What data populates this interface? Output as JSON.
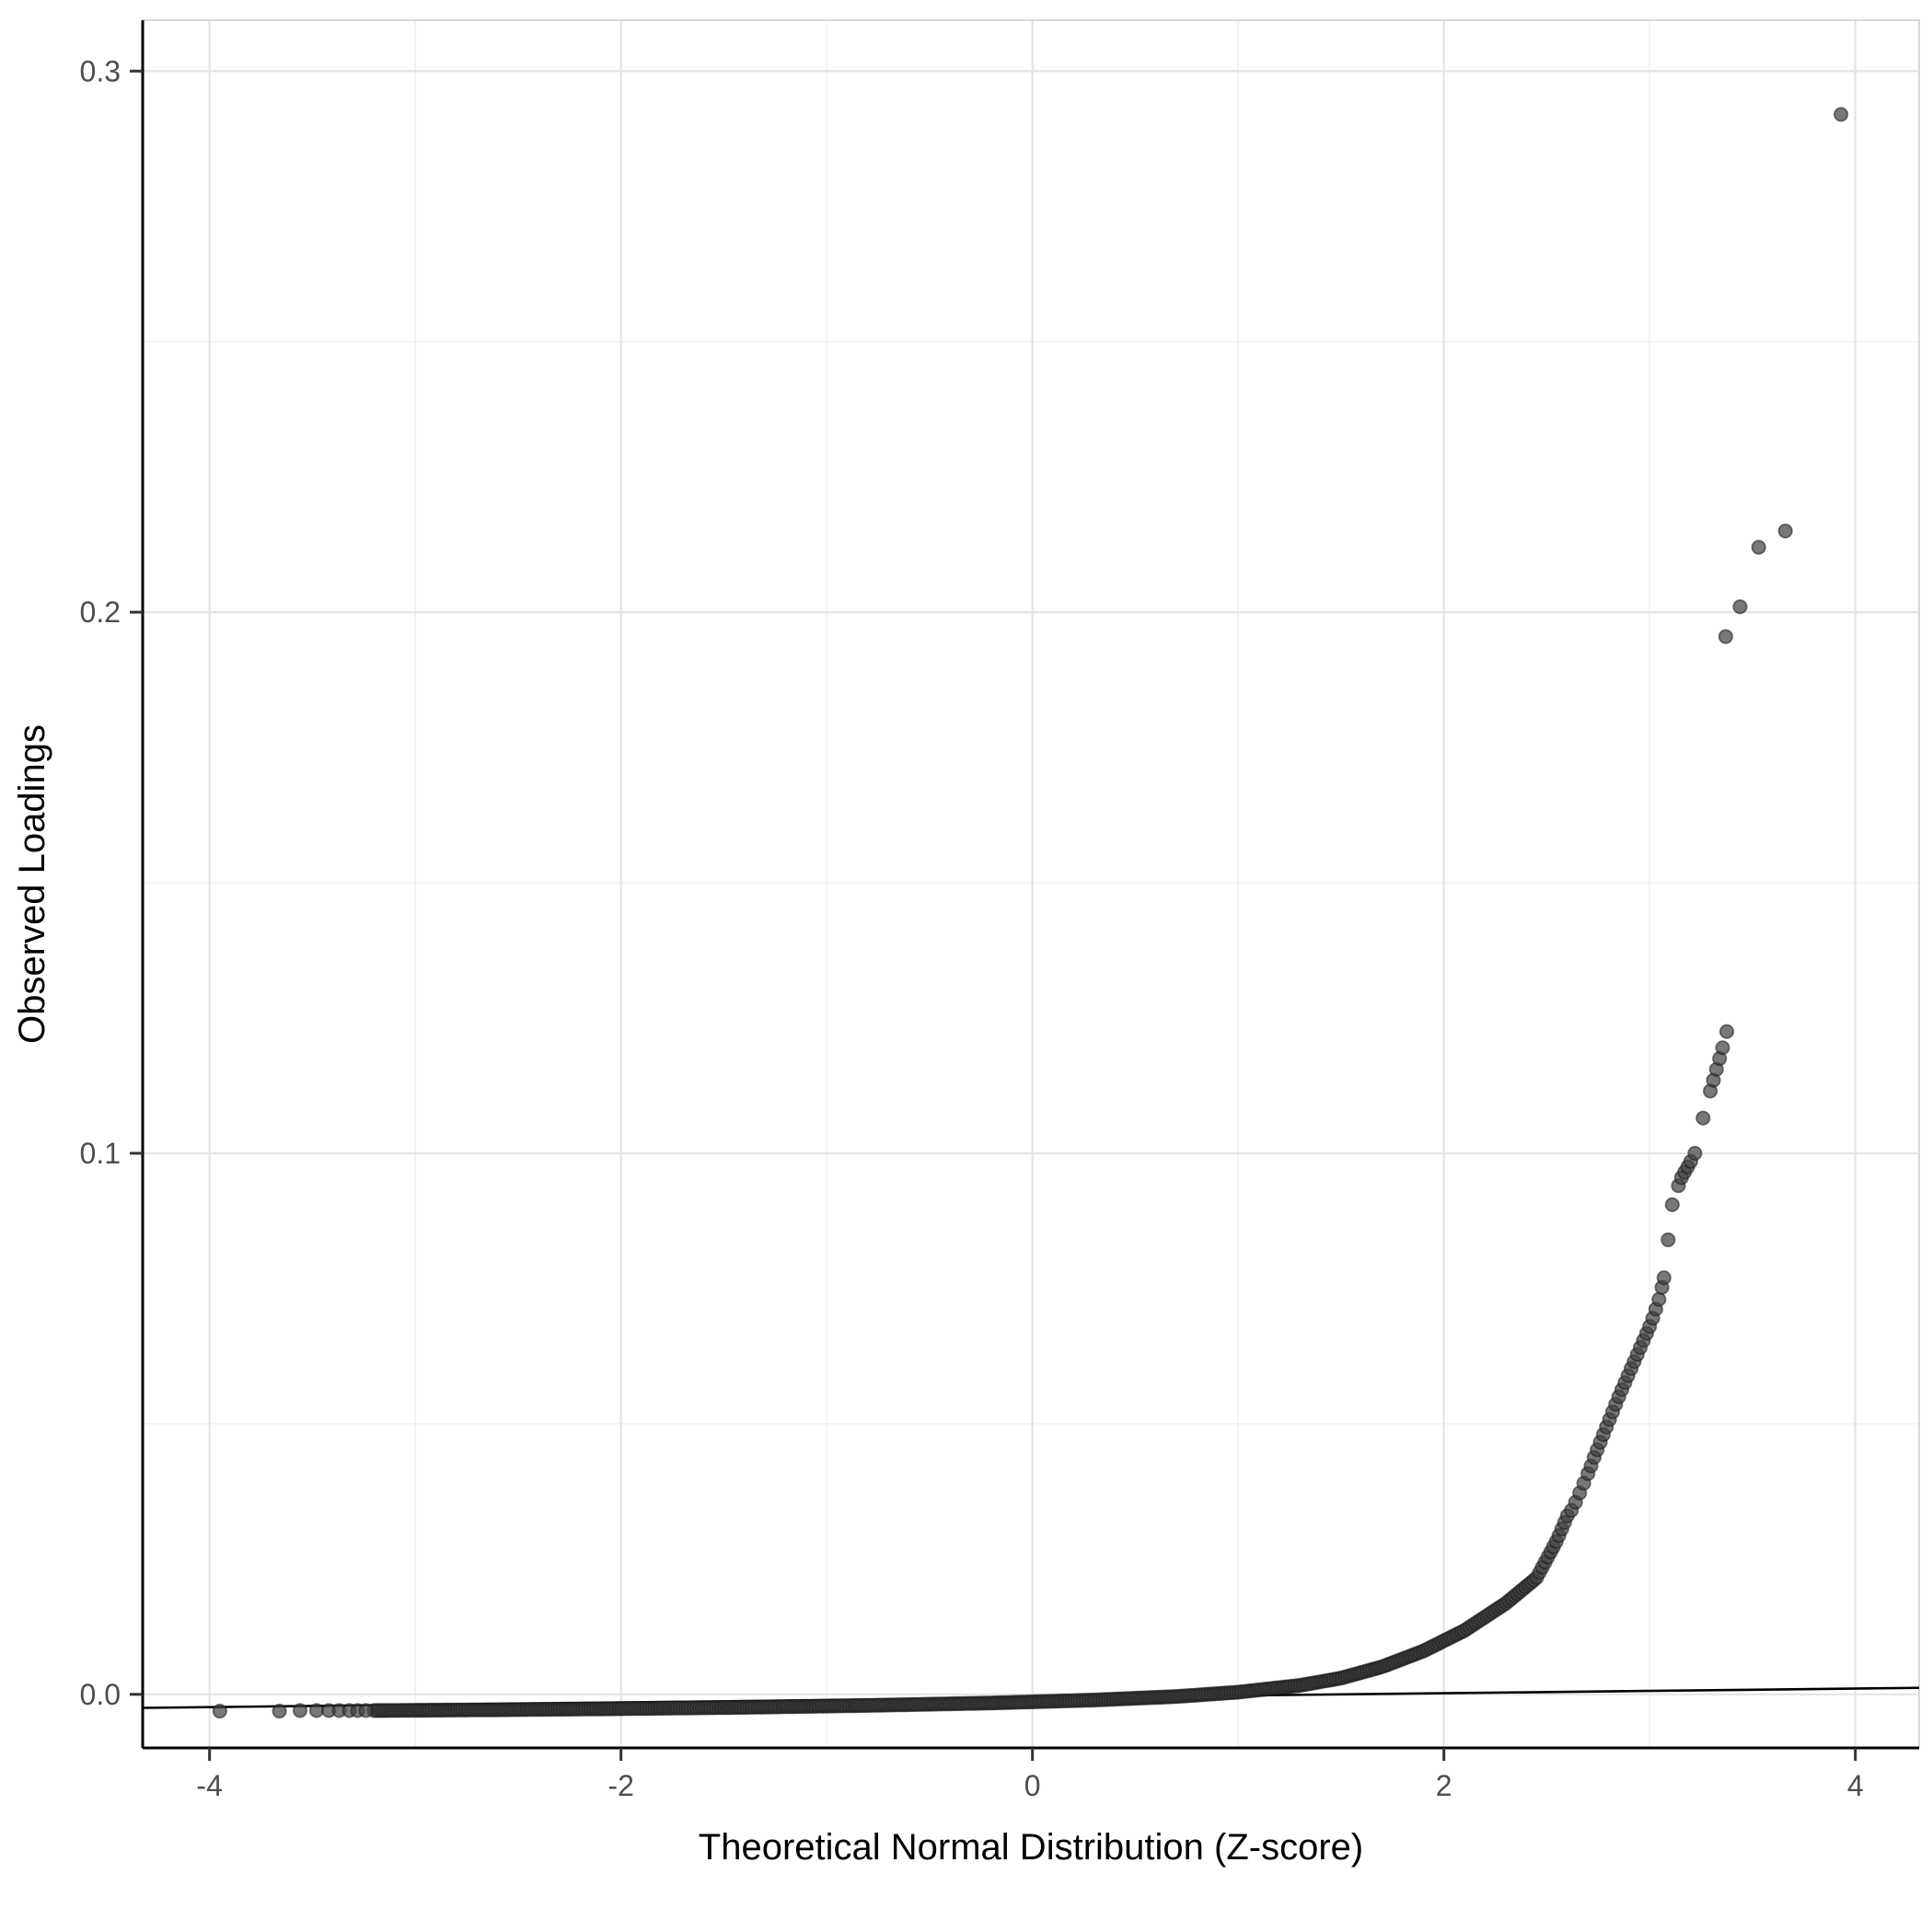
{
  "figure": {
    "background": "#ffffff",
    "panel_border_color": "#d9d9d9",
    "axis_line_color": "#000000",
    "grid_major_color": "#e4e4e4",
    "grid_minor_color": "#f2f2f2",
    "tick_color": "#333333",
    "tick_label_color": "#4d4d4d",
    "title_color": "#000000",
    "point_fill": "#3f3f3f",
    "point_stroke": "#1a1a1a",
    "ref_line_color": "#000000"
  },
  "chart_data": {
    "type": "scatter",
    "title": "",
    "xlabel": "Theoretical Normal Distribution (Z-score)",
    "ylabel": "Observed Loadings",
    "xlim": [
      -4.325,
      4.31
    ],
    "ylim": [
      -0.0099,
      0.3094
    ],
    "grid": true,
    "legend": "none",
    "x_major_ticks": [
      -4,
      -2,
      0,
      2,
      4
    ],
    "x_tick_labels": [
      "-4",
      "-2",
      "0",
      "2",
      "4"
    ],
    "x_minor_ticks": [
      -3,
      -1,
      1,
      3
    ],
    "y_major_ticks": [
      0.0,
      0.1,
      0.2,
      0.3
    ],
    "y_tick_labels": [
      "0.0",
      "0.1",
      "0.2",
      "0.3"
    ],
    "y_minor_ticks": [
      0.05,
      0.15,
      0.25
    ],
    "ref_line": {
      "x1": -4.325,
      "y1": -0.0025,
      "x2": 4.31,
      "y2": 0.0012
    },
    "band": {
      "comment": "dense overlapping QQ-plot body, interpolated between anchors",
      "n": 430,
      "anchors": [
        [
          -3.2,
          -0.003
        ],
        [
          -2.6,
          -0.00285
        ],
        [
          -2.0,
          -0.00265
        ],
        [
          -1.4,
          -0.0024
        ],
        [
          -0.8,
          -0.00205
        ],
        [
          -0.2,
          -0.0016
        ],
        [
          0.3,
          -0.00105
        ],
        [
          0.7,
          -0.0004
        ],
        [
          1.0,
          0.0004
        ],
        [
          1.3,
          0.00165
        ],
        [
          1.5,
          0.003
        ],
        [
          1.7,
          0.0051
        ],
        [
          1.9,
          0.008
        ],
        [
          2.1,
          0.0118
        ],
        [
          2.3,
          0.0168
        ],
        [
          2.45,
          0.0215
        ],
        [
          2.55,
          0.0285
        ],
        [
          2.6,
          0.033
        ]
      ]
    },
    "points": [
      [
        -3.95,
        -0.0031
      ],
      [
        -3.66,
        -0.0031
      ],
      [
        -3.56,
        -0.003
      ],
      [
        -3.48,
        -0.003
      ],
      [
        -3.42,
        -0.003
      ],
      [
        -3.37,
        -0.003
      ],
      [
        -3.32,
        -0.003
      ],
      [
        -3.28,
        -0.003
      ],
      [
        -3.24,
        -0.003
      ],
      [
        2.62,
        0.034
      ],
      [
        2.64,
        0.0355
      ],
      [
        2.66,
        0.0372
      ],
      [
        2.68,
        0.039
      ],
      [
        2.7,
        0.0408
      ],
      [
        2.715,
        0.0422
      ],
      [
        2.73,
        0.0438
      ],
      [
        2.745,
        0.0452
      ],
      [
        2.76,
        0.0466
      ],
      [
        2.775,
        0.048
      ],
      [
        2.79,
        0.0494
      ],
      [
        2.805,
        0.0508
      ],
      [
        2.82,
        0.0522
      ],
      [
        2.835,
        0.0536
      ],
      [
        2.85,
        0.055
      ],
      [
        2.865,
        0.0563
      ],
      [
        2.88,
        0.0576
      ],
      [
        2.895,
        0.0589
      ],
      [
        2.91,
        0.0602
      ],
      [
        2.925,
        0.0615
      ],
      [
        2.94,
        0.0628
      ],
      [
        2.955,
        0.0641
      ],
      [
        2.97,
        0.0654
      ],
      [
        2.985,
        0.0667
      ],
      [
        3.0,
        0.068
      ],
      [
        3.015,
        0.0695
      ],
      [
        3.03,
        0.0712
      ],
      [
        3.045,
        0.073
      ],
      [
        3.06,
        0.0752
      ],
      [
        3.07,
        0.077
      ],
      [
        3.09,
        0.084
      ],
      [
        3.11,
        0.0905
      ],
      [
        3.14,
        0.094
      ],
      [
        3.155,
        0.0955
      ],
      [
        3.17,
        0.0965
      ],
      [
        3.185,
        0.0975
      ],
      [
        3.2,
        0.0985
      ],
      [
        3.22,
        0.1
      ],
      [
        3.26,
        0.1065
      ],
      [
        3.295,
        0.1115
      ],
      [
        3.31,
        0.1135
      ],
      [
        3.325,
        0.1155
      ],
      [
        3.34,
        0.1175
      ],
      [
        3.355,
        0.1195
      ],
      [
        3.375,
        0.1225
      ],
      [
        3.37,
        0.1955
      ],
      [
        3.44,
        0.201
      ],
      [
        3.53,
        0.212
      ],
      [
        3.66,
        0.215
      ],
      [
        3.93,
        0.292
      ]
    ]
  }
}
